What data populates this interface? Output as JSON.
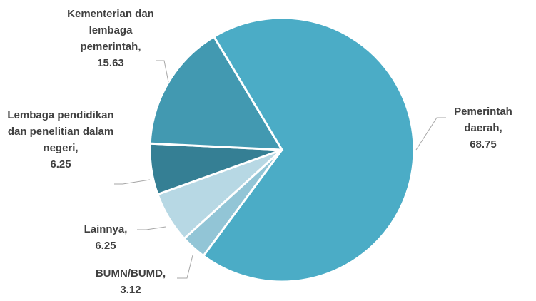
{
  "chart_data": {
    "type": "pie",
    "categories": [
      "Pemerintah daerah,",
      "BUMN/BUMD,",
      "Lainnya,",
      "Lembaga pendidikan dan penelitian dalam negeri,",
      "Kementerian dan lembaga pemerintah,"
    ],
    "values": [
      68.75,
      3.12,
      6.25,
      6.25,
      15.63
    ],
    "colors": [
      "#4bacc6",
      "#92c5d6",
      "#b7d8e4",
      "#357f94",
      "#4299b1"
    ]
  }
}
